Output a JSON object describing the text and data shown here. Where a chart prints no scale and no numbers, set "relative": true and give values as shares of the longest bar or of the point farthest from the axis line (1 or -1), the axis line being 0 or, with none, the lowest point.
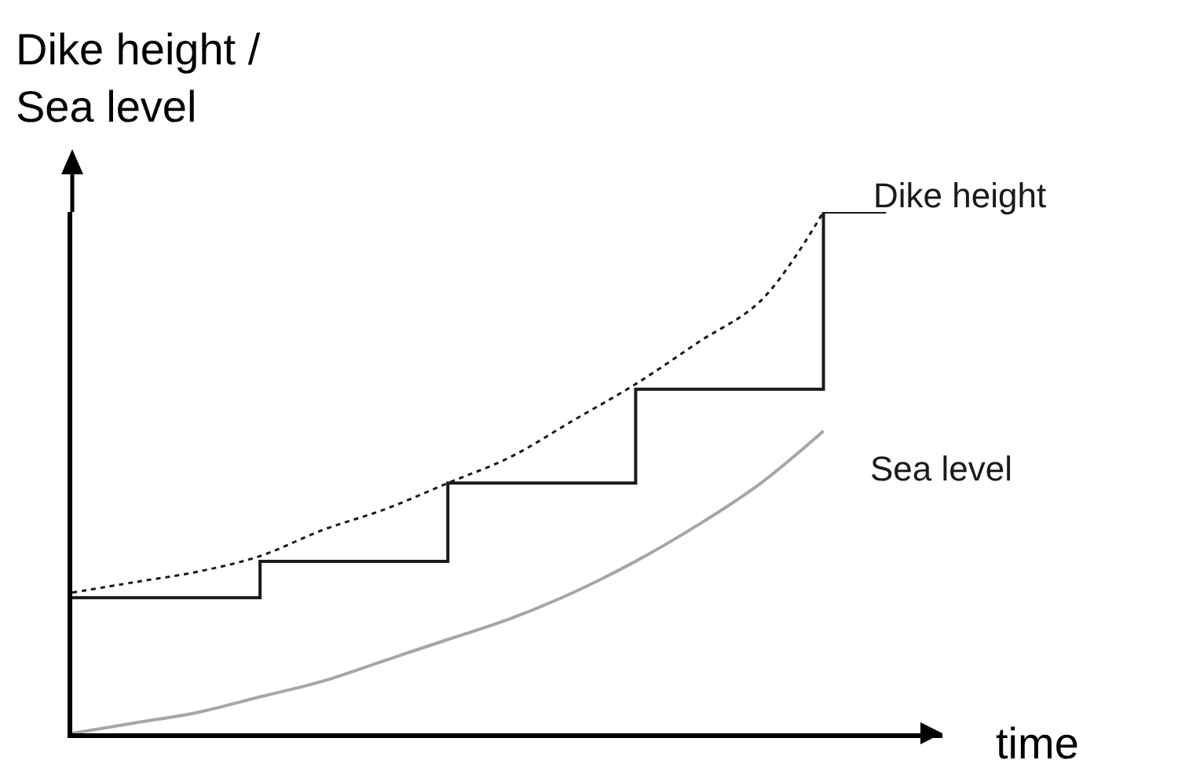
{
  "chart_data": {
    "type": "line",
    "relative": true,
    "xlabel": "time",
    "ylabel": "Dike height / Sea level",
    "grid": false,
    "legend": false,
    "marker": "none",
    "categories": [
      null,
      null,
      null,
      null,
      null,
      null,
      null,
      null,
      null,
      null,
      null,
      null,
      null,
      null
    ],
    "series": [
      {
        "name": "Dike height",
        "type": "step",
        "color": "#1a1a1a",
        "line_style": "solid",
        "values": [
          0.26,
          0.26,
          0.26,
          0.33,
          0.33,
          0.33,
          0.48,
          0.48,
          0.48,
          0.66,
          0.66,
          0.66,
          1,
          1
        ]
      },
      {
        "type": "line",
        "color": "#1a1a1a",
        "line_style": "dotted",
        "values": [
          0.27,
          0.29,
          0.31,
          0.34,
          0.39,
          0.43,
          0.48,
          0.53,
          0.6,
          0.67,
          0.75,
          0.83,
          1,
          null
        ]
      },
      {
        "name": "Sea level",
        "type": "line",
        "color": "#a6a6a6",
        "line_style": "solid",
        "values": [
          0,
          0.02,
          0.04,
          0.07,
          0.1,
          0.14,
          0.18,
          0.22,
          0.27,
          0.33,
          0.4,
          0.48,
          0.58,
          null
        ]
      }
    ]
  }
}
